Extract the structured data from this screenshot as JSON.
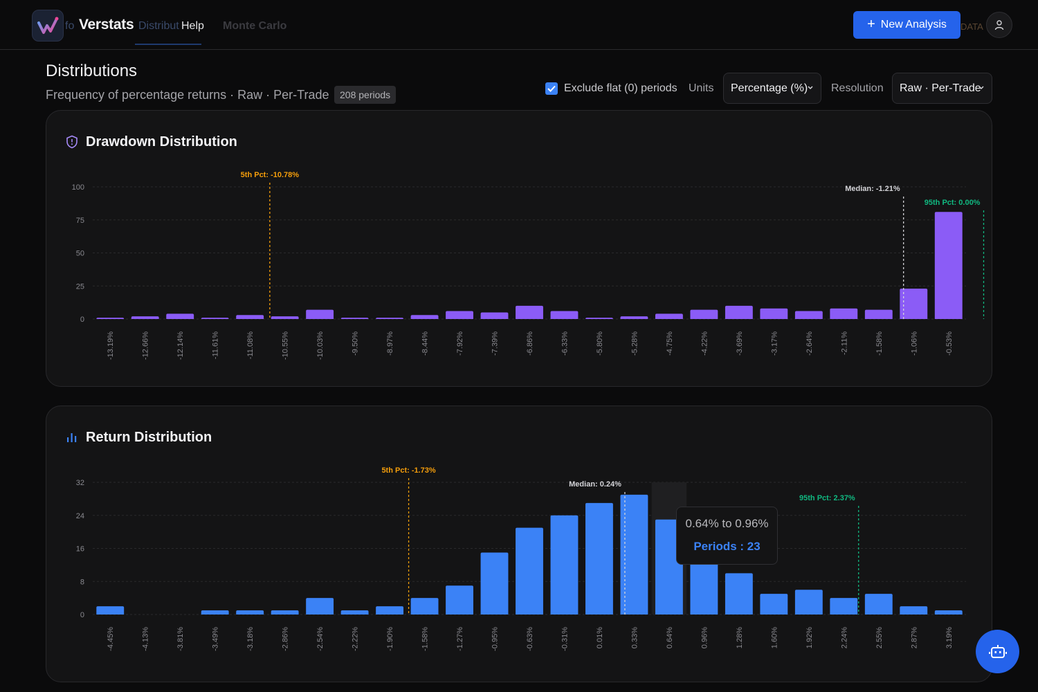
{
  "app": {
    "brand": "Verstats",
    "ghost_tabs": [
      "fo",
      "Distribut"
    ]
  },
  "nav": {
    "help": "Help",
    "monte_carlo": "Monte Carlo"
  },
  "topbar": {
    "new_analysis": "New Analysis",
    "ghost_data": "DATA"
  },
  "header": {
    "title": "Distributions",
    "subtitle": "Frequency of percentage returns · Raw · Per-Trade",
    "periods_badge": "208 periods",
    "exclude_flat_label": "Exclude flat (0) periods",
    "exclude_flat_checked": true,
    "units_label": "Units",
    "units_value": "Percentage (%)",
    "resolution_label": "Resolution",
    "resolution_value": "Raw · Per-Trade"
  },
  "colors": {
    "drawdown_bar": "#8b5cf6",
    "return_bar": "#3b82f6",
    "p5": "#f59e0b",
    "median": "#d4d4d8",
    "p95": "#10b981",
    "accent": "#2563eb"
  },
  "chart_data": [
    {
      "type": "bar",
      "title": "Drawdown Distribution",
      "icon": "shield-alert-icon",
      "categories": [
        "-13.19%",
        "-12.66%",
        "-12.14%",
        "-11.61%",
        "-11.08%",
        "-10.55%",
        "-10.03%",
        "-9.50%",
        "-8.97%",
        "-8.44%",
        "-7.92%",
        "-7.39%",
        "-6.86%",
        "-6.33%",
        "-5.80%",
        "-5.28%",
        "-4.75%",
        "-4.22%",
        "-3.69%",
        "-3.17%",
        "-2.64%",
        "-2.11%",
        "-1.58%",
        "-1.06%",
        "-0.53%"
      ],
      "values": [
        1,
        2,
        4,
        1,
        3,
        2,
        7,
        1,
        1,
        3,
        6,
        5,
        10,
        6,
        1,
        2,
        4,
        7,
        10,
        8,
        6,
        8,
        7,
        23,
        81
      ],
      "ylim": [
        0,
        100
      ],
      "yticks": [
        0,
        25,
        50,
        75,
        100
      ],
      "grid": true,
      "markers": [
        {
          "label": "5th Pct: -10.78%",
          "value": -10.78,
          "color": "#f59e0b"
        },
        {
          "label": "Median: -1.21%",
          "value": -1.21,
          "color": "#d4d4d8"
        },
        {
          "label": "95th Pct: 0.00%",
          "value": 0.0,
          "color": "#10b981"
        }
      ]
    },
    {
      "type": "bar",
      "title": "Return Distribution",
      "icon": "bar-chart-icon",
      "categories": [
        "-4.45%",
        "-4.13%",
        "-3.81%",
        "-3.49%",
        "-3.18%",
        "-2.86%",
        "-2.54%",
        "-2.22%",
        "-1.90%",
        "-1.58%",
        "-1.27%",
        "-0.95%",
        "-0.63%",
        "-0.31%",
        "0.01%",
        "0.33%",
        "0.64%",
        "0.96%",
        "1.28%",
        "1.60%",
        "1.92%",
        "2.24%",
        "2.55%",
        "2.87%",
        "3.19%"
      ],
      "values": [
        2,
        0,
        0,
        1,
        1,
        1,
        4,
        1,
        2,
        4,
        7,
        15,
        21,
        24,
        27,
        29,
        23,
        17,
        10,
        5,
        6,
        4,
        5,
        2,
        1
      ],
      "ylim": [
        0,
        32
      ],
      "yticks": [
        0,
        8,
        16,
        24,
        32
      ],
      "grid": true,
      "markers": [
        {
          "label": "5th Pct: -1.73%",
          "value": -1.73,
          "color": "#f59e0b"
        },
        {
          "label": "Median: 0.24%",
          "value": 0.24,
          "color": "#d4d4d8"
        },
        {
          "label": "95th Pct: 2.37%",
          "value": 2.37,
          "color": "#10b981"
        }
      ],
      "hover_index": 16,
      "tooltip": {
        "range": "0.64% to 0.96%",
        "count_label": "Periods : 23"
      }
    }
  ]
}
